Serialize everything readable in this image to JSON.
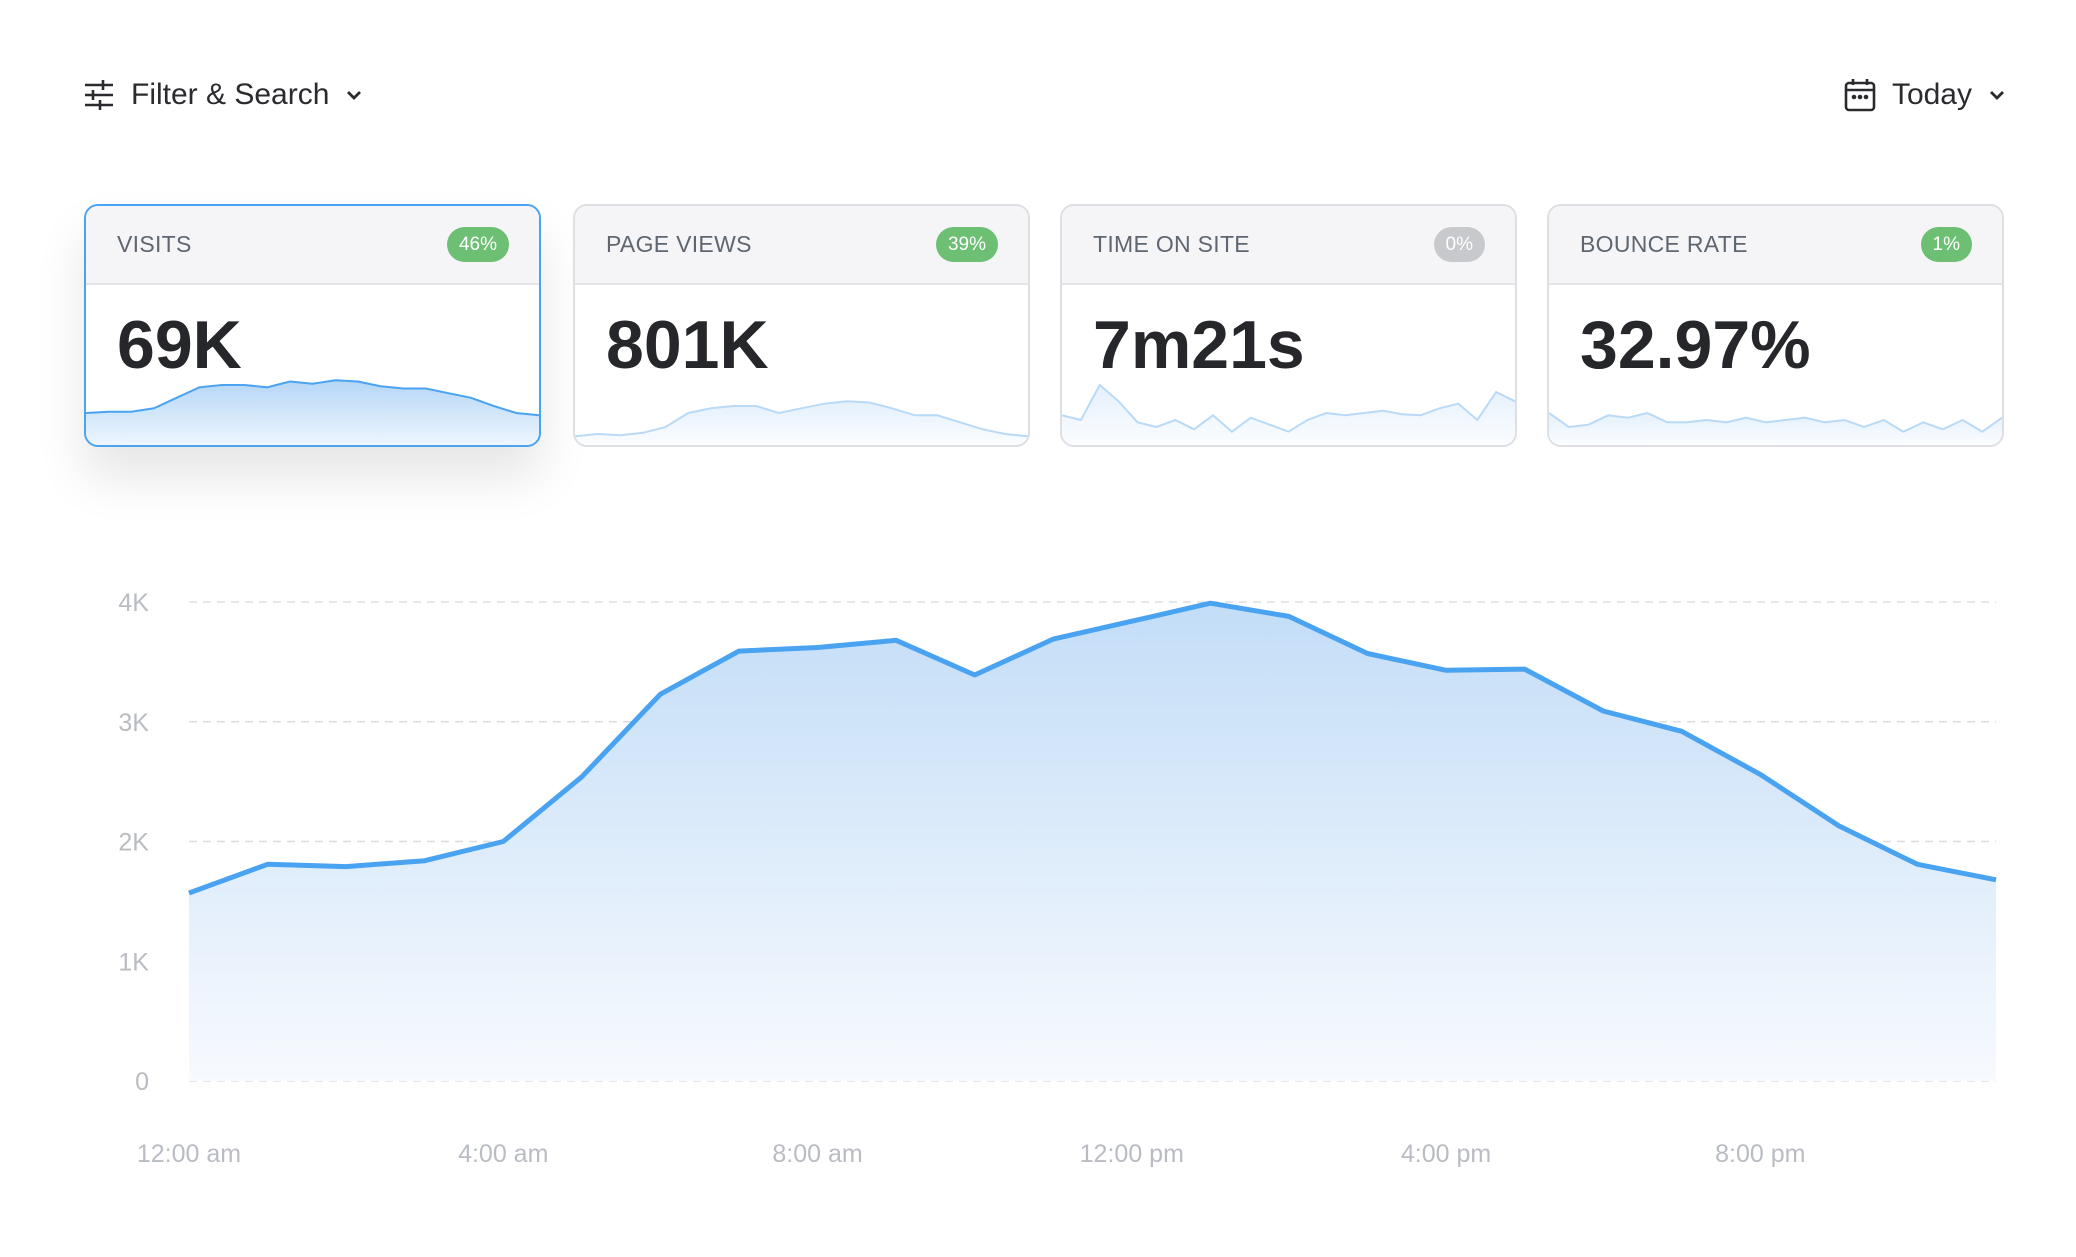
{
  "toolbar": {
    "filter_label": "Filter & Search",
    "date_label": "Today"
  },
  "cards": [
    {
      "label": "VISITS",
      "change": "46%",
      "trend": "up",
      "badge_color": "#6dbf73",
      "value": "69K",
      "selected": true,
      "sparkline": [
        24,
        25,
        25,
        28,
        37,
        46,
        48,
        48,
        46,
        51,
        49,
        52,
        51,
        47,
        45,
        45,
        41,
        37,
        30,
        24,
        22
      ]
    },
    {
      "label": "PAGE VIEWS",
      "change": "39%",
      "trend": "up",
      "badge_color": "#6dbf73",
      "value": "801K",
      "selected": false,
      "sparkline": [
        4,
        6,
        5,
        7,
        12,
        24,
        28,
        30,
        30,
        24,
        28,
        32,
        34,
        33,
        28,
        22,
        22,
        16,
        10,
        6,
        4
      ]
    },
    {
      "label": "TIME ON SITE",
      "change": "0%",
      "trend": "flat",
      "badge_color": "#c8c9cc",
      "value": "7m21s",
      "selected": false,
      "sparkline": [
        22,
        18,
        48,
        34,
        16,
        12,
        18,
        10,
        22,
        8,
        20,
        14,
        8,
        18,
        24,
        22,
        24,
        26,
        23,
        22,
        28,
        32,
        18,
        42,
        34
      ]
    },
    {
      "label": "BOUNCE RATE",
      "change": "1%",
      "trend": "down",
      "badge_color": "#6dbf73",
      "value": "32.97%",
      "selected": false,
      "sparkline": [
        24,
        12,
        14,
        22,
        20,
        24,
        16,
        16,
        18,
        16,
        20,
        16,
        18,
        20,
        16,
        18,
        12,
        18,
        8,
        16,
        10,
        18,
        8,
        20
      ]
    }
  ],
  "chart_data": {
    "type": "area",
    "color": "#4aa3f0",
    "grid": true,
    "x": [
      0,
      1,
      2,
      3,
      4,
      5,
      6,
      7,
      8,
      9,
      10,
      11,
      12,
      13,
      14,
      15,
      16,
      17,
      18,
      19,
      20,
      21,
      22,
      23
    ],
    "values": [
      1570,
      1810,
      1790,
      1840,
      2000,
      2540,
      3230,
      3590,
      3620,
      3680,
      3390,
      3690,
      3840,
      3990,
      3880,
      3570,
      3430,
      3440,
      3090,
      2920,
      2560,
      2130,
      1810,
      1680
    ],
    "xlim": [
      0,
      23
    ],
    "xticks": [
      {
        "value": 0,
        "label": "12:00 am"
      },
      {
        "value": 4,
        "label": "4:00 am"
      },
      {
        "value": 8,
        "label": "8:00 am"
      },
      {
        "value": 12,
        "label": "12:00 pm"
      },
      {
        "value": 16,
        "label": "4:00 pm"
      },
      {
        "value": 20,
        "label": "8:00 pm"
      }
    ],
    "ylim": [
      0,
      4000
    ],
    "yticks": [
      0,
      {
        "value": 1000,
        "label": "1K"
      },
      {
        "value": 2000,
        "label": "2K"
      },
      {
        "value": 3000,
        "label": "3K"
      },
      {
        "value": 4000,
        "label": "4K"
      }
    ]
  }
}
